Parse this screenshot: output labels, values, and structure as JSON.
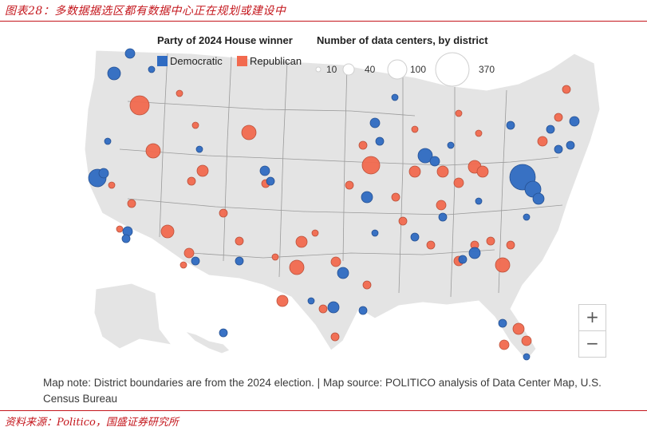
{
  "figure_title": "图表28：多数据据选区都有数据中心正在规划或建设中",
  "source": "资料来源：Politico，国盛证券研究所",
  "legend": {
    "party_heading": "Party of 2024 House winner",
    "democratic_label": "Democratic",
    "republican_label": "Republican",
    "size_heading": "Number of data centers, by district",
    "size_labels": [
      "10",
      "40",
      "100",
      "370"
    ],
    "democratic_color": "#2f6bc2",
    "republican_color": "#f26a4f"
  },
  "controls": {
    "zoom_in": "+",
    "zoom_out": "−"
  },
  "map_note": "Map note: District boundaries are from the 2024 election. | Map source: POLITICO analysis of Data Center Map, U.S. Census Bureau"
}
